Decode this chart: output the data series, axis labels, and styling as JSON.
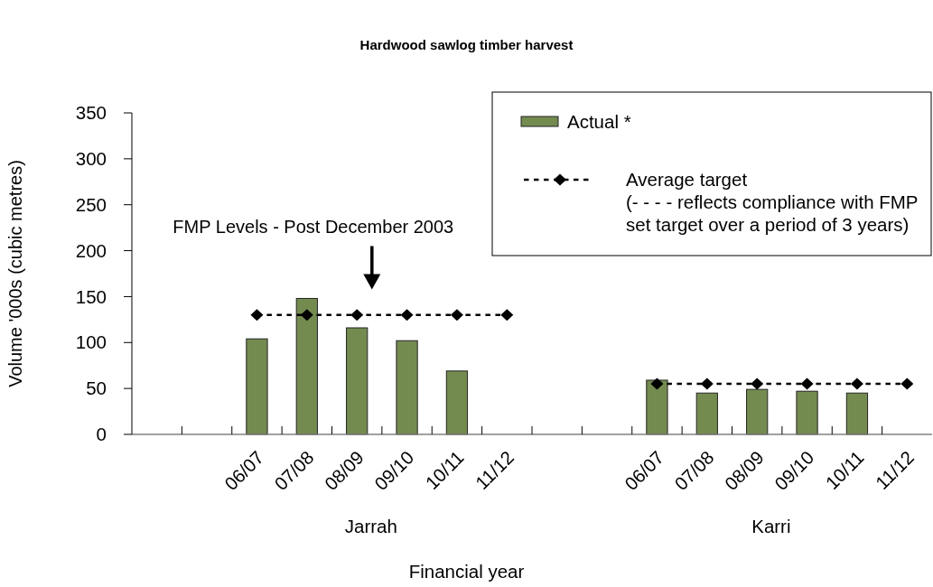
{
  "chart_data": {
    "type": "bar",
    "title": "Hardwood sawlog timber harvest",
    "xlabel": "Financial year",
    "ylabel": "Volume '000s (cubic metres)",
    "categories": [
      null,
      null,
      "06/07",
      "07/08",
      "08/09",
      "09/10",
      "10/11",
      "11/12",
      null,
      null,
      "06/07",
      "07/08",
      "08/09",
      "09/10",
      "10/11",
      "11/12"
    ],
    "series": [
      {
        "name": "Actual *",
        "color": "#748b50",
        "values": [
          null,
          null,
          104,
          148,
          116,
          102,
          69,
          null,
          null,
          null,
          59,
          45,
          49,
          47,
          45,
          null
        ]
      },
      {
        "name": "Average target\n(- - - - reflects compliance with FMP\nset target over a period of 3 years)",
        "type": "line",
        "color": "#000000",
        "values": [
          null,
          null,
          130,
          130,
          130,
          130,
          130,
          130,
          null,
          null,
          55,
          55,
          55,
          55,
          55,
          55
        ]
      }
    ],
    "ylim": [
      0,
      350
    ],
    "yticks": [
      0,
      50,
      100,
      150,
      200,
      250,
      300,
      350
    ],
    "legend": "top right",
    "marker": "diamond",
    "line_style": "dotted",
    "annotations": [
      "FMP Levels - Post December 2003",
      "Jarrah",
      "Karri"
    ]
  }
}
